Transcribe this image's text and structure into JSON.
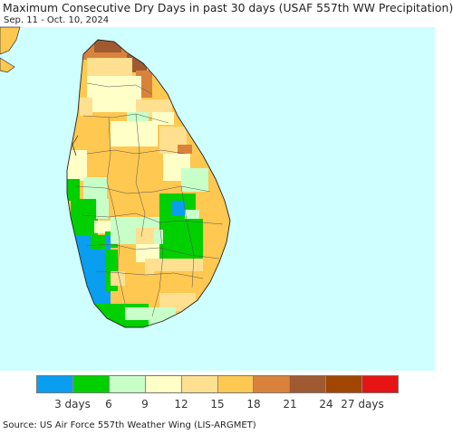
{
  "title": "Maximum Consecutive Dry Days in past 30 days (USAF 557th WW Precipitation)",
  "subtitle": "Sep. 11 - Oct. 10, 2024",
  "source": "Source: US Air Force 557th Weather Wing (LIS-ARGMET)",
  "colors": {
    "ocean": "#cfffff",
    "bin_0_3": "#0a9ef0",
    "bin_3_6": "#00d000",
    "bin_6_9": "#c8ffc8",
    "bin_9_12": "#ffffc8",
    "bin_12_15": "#ffe090",
    "bin_15_18": "#ffc850",
    "bin_18_21": "#d9823c",
    "bin_21_24": "#a05a32",
    "bin_24_27": "#a04600",
    "bin_27_plus": "#e61414"
  },
  "legend": {
    "swatches": [
      "#0a9ef0",
      "#00d000",
      "#c8ffc8",
      "#ffffc8",
      "#ffe090",
      "#ffc850",
      "#d9823c",
      "#a05a32",
      "#a04600",
      "#e61414"
    ],
    "labels": [
      "3 days",
      "6",
      "9",
      "12",
      "15",
      "18",
      "21",
      "24",
      "27 days"
    ]
  }
}
